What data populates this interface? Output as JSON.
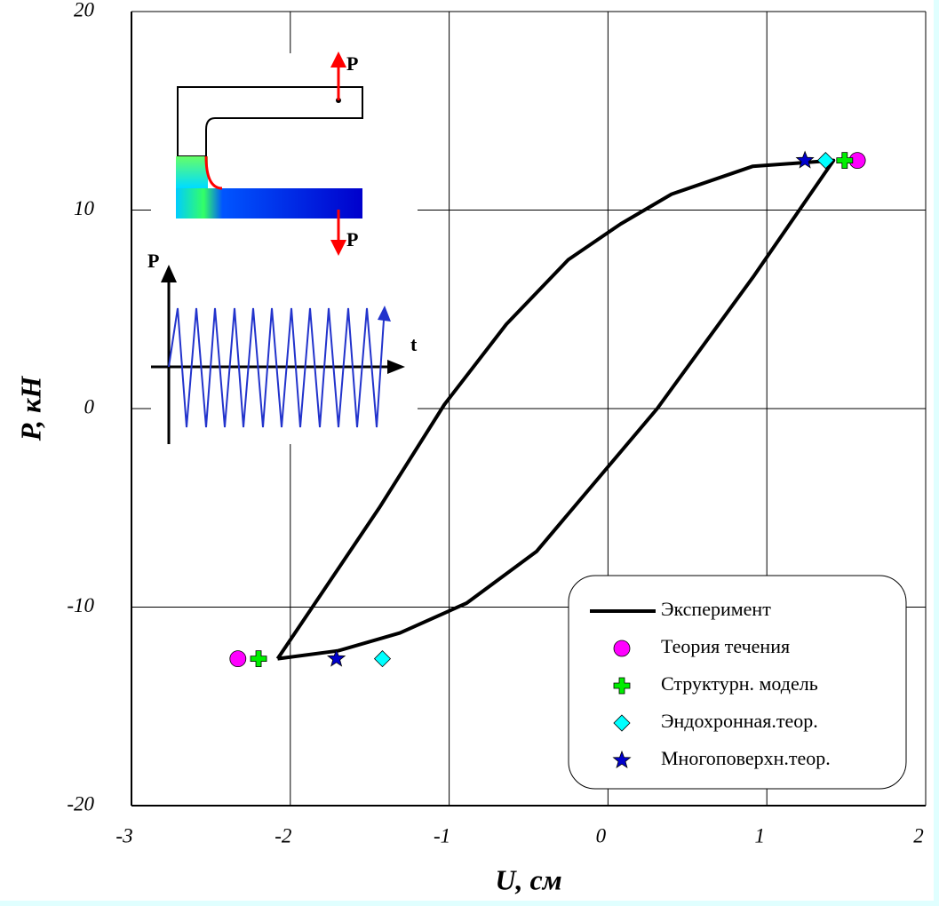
{
  "chart_data": {
    "type": "line",
    "xlabel": "U,   см",
    "ylabel": "P, кН",
    "xlim": [
      -3,
      2
    ],
    "ylim": [
      -20,
      20
    ],
    "xticks": [
      -3,
      -2,
      -1,
      0,
      1,
      2
    ],
    "yticks": [
      -20,
      -10,
      0,
      10,
      20
    ],
    "grid": true,
    "legend": "lower right",
    "annotations": [
      "P",
      "P",
      "P",
      "t"
    ],
    "series": [
      {
        "name": "Эксперимент",
        "color": "#000000",
        "marker": "line",
        "x": [
          -2.08,
          -1.44,
          -1.03,
          -0.64,
          -0.25,
          0.08,
          0.4,
          0.91,
          1.42,
          0.92,
          0.31,
          -0.45,
          -0.89,
          -1.31,
          -1.7,
          -2.08
        ],
        "values": [
          -12.6,
          -5.0,
          0.2,
          4.25,
          7.5,
          9.3,
          10.8,
          12.2,
          12.5,
          6.7,
          0,
          -7.2,
          -9.8,
          -11.3,
          -12.2,
          -12.6
        ]
      },
      {
        "name": "Теория течения",
        "color": "#ff00ff",
        "marker": "circle",
        "x": [
          1.57,
          -2.33
        ],
        "values": [
          12.5,
          -12.6
        ]
      },
      {
        "name": "Структурн. модель",
        "color": "#00ee00",
        "marker": "plus",
        "x": [
          1.49,
          -2.2
        ],
        "values": [
          12.5,
          -12.6
        ]
      },
      {
        "name": "Эндохронная.теор.",
        "color": "#00ffff",
        "marker": "diamond",
        "x": [
          1.37,
          -1.42
        ],
        "values": [
          12.5,
          -12.6
        ]
      },
      {
        "name": "Многоповерхн.теор.",
        "color": "#0000cc",
        "marker": "star",
        "x": [
          1.24,
          -1.71
        ],
        "values": [
          12.5,
          -12.6
        ]
      }
    ]
  }
}
